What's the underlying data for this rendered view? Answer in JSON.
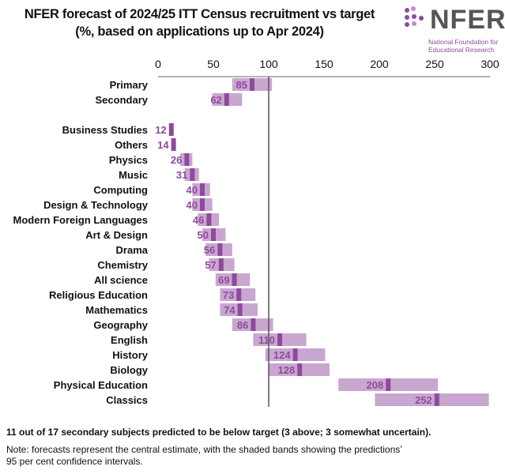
{
  "logo": {
    "text": "NFER",
    "subtitle_line1": "National Foundation for",
    "subtitle_line2": "Educational Research"
  },
  "colors": {
    "band": "#c9a6d0",
    "marker": "#8e4a9c",
    "label": "#8e4a9c",
    "target_line": "#555555"
  },
  "chart_data": {
    "type": "bar",
    "title_line1": "NFER forecast of 2024/25 ITT Census recruitment vs target",
    "title_line2": "(%, based on applications up to Apr 2024)",
    "xlim": [
      0,
      300
    ],
    "xticks": [
      0,
      50,
      100,
      150,
      200,
      250,
      300
    ],
    "xaxis_position": "top",
    "reference_line": 100,
    "grid": false,
    "categories": [
      "Primary",
      "Secondary",
      "Business Studies",
      "Others",
      "Physics",
      "Music",
      "Computing",
      "Design & Technology",
      "Modern Foreign Languages",
      "Art & Design",
      "Drama",
      "Chemistry",
      "All science",
      "Religious Education",
      "Mathematics",
      "Geography",
      "English",
      "History",
      "Biology",
      "Physical Education",
      "Classics"
    ],
    "values": [
      85,
      62,
      12,
      14,
      26,
      31,
      40,
      40,
      46,
      50,
      56,
      57,
      69,
      73,
      74,
      86,
      110,
      124,
      128,
      208,
      252
    ],
    "lower": [
      67,
      49,
      11,
      13,
      20,
      24,
      31,
      31,
      36,
      40,
      43,
      46,
      52,
      56,
      56,
      67,
      86,
      97,
      100,
      163,
      196
    ],
    "upper": [
      103,
      76,
      13,
      15,
      31,
      37,
      47,
      49,
      55,
      61,
      67,
      69,
      83,
      88,
      90,
      104,
      134,
      151,
      155,
      253,
      299
    ]
  },
  "footer": {
    "summary": "11 out of 17 secondary subjects predicted to be below target (3 above; 3 somewhat uncertain).",
    "note_line1": "Note: forecasts represent the central estimate, with the shaded bands showing the predictions’",
    "note_line2": "95 per cent confidence intervals."
  }
}
